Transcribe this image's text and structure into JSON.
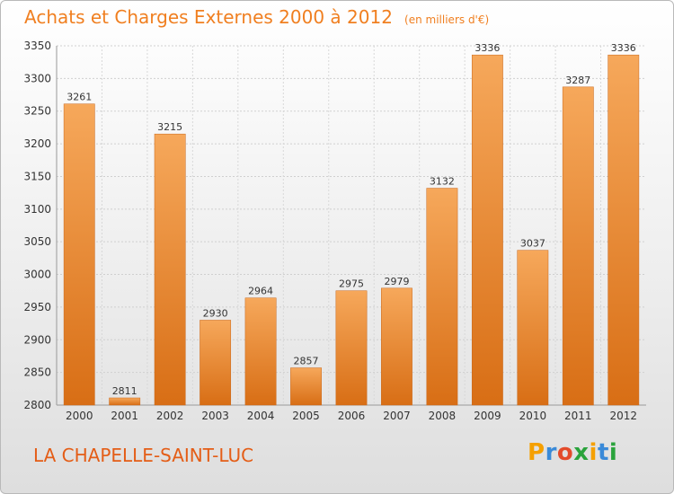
{
  "title": "Achats et Charges Externes 2000 à 2012",
  "unit": "(en milliers d'€)",
  "place": "LA CHAPELLE-SAINT-LUC",
  "brand": {
    "letters": [
      "P",
      "r",
      "o",
      "x",
      "i",
      "t",
      "i"
    ],
    "colors": [
      "#f5a000",
      "#3a8ad8",
      "#e34b2b",
      "#2aa33c",
      "#f5a000",
      "#3a8ad8",
      "#2aa33c"
    ]
  },
  "colors": {
    "bar_top": "#f6a85b",
    "bar_bottom": "#d86e15",
    "title": "#f07f20",
    "place": "#e45d16"
  },
  "chart_data": {
    "type": "bar",
    "categories": [
      "2000",
      "2001",
      "2002",
      "2003",
      "2004",
      "2005",
      "2006",
      "2007",
      "2008",
      "2009",
      "2010",
      "2011",
      "2012"
    ],
    "values": [
      3261,
      2811,
      3215,
      2930,
      2964,
      2857,
      2975,
      2979,
      3132,
      3336,
      3037,
      3287,
      3336
    ],
    "ylim": [
      2800,
      3350
    ],
    "yticks": [
      "2800",
      "2850",
      "2900",
      "2950",
      "3000",
      "3050",
      "3100",
      "3150",
      "3200",
      "3250",
      "3300",
      "3350"
    ],
    "grid": true,
    "data_labels": true
  }
}
